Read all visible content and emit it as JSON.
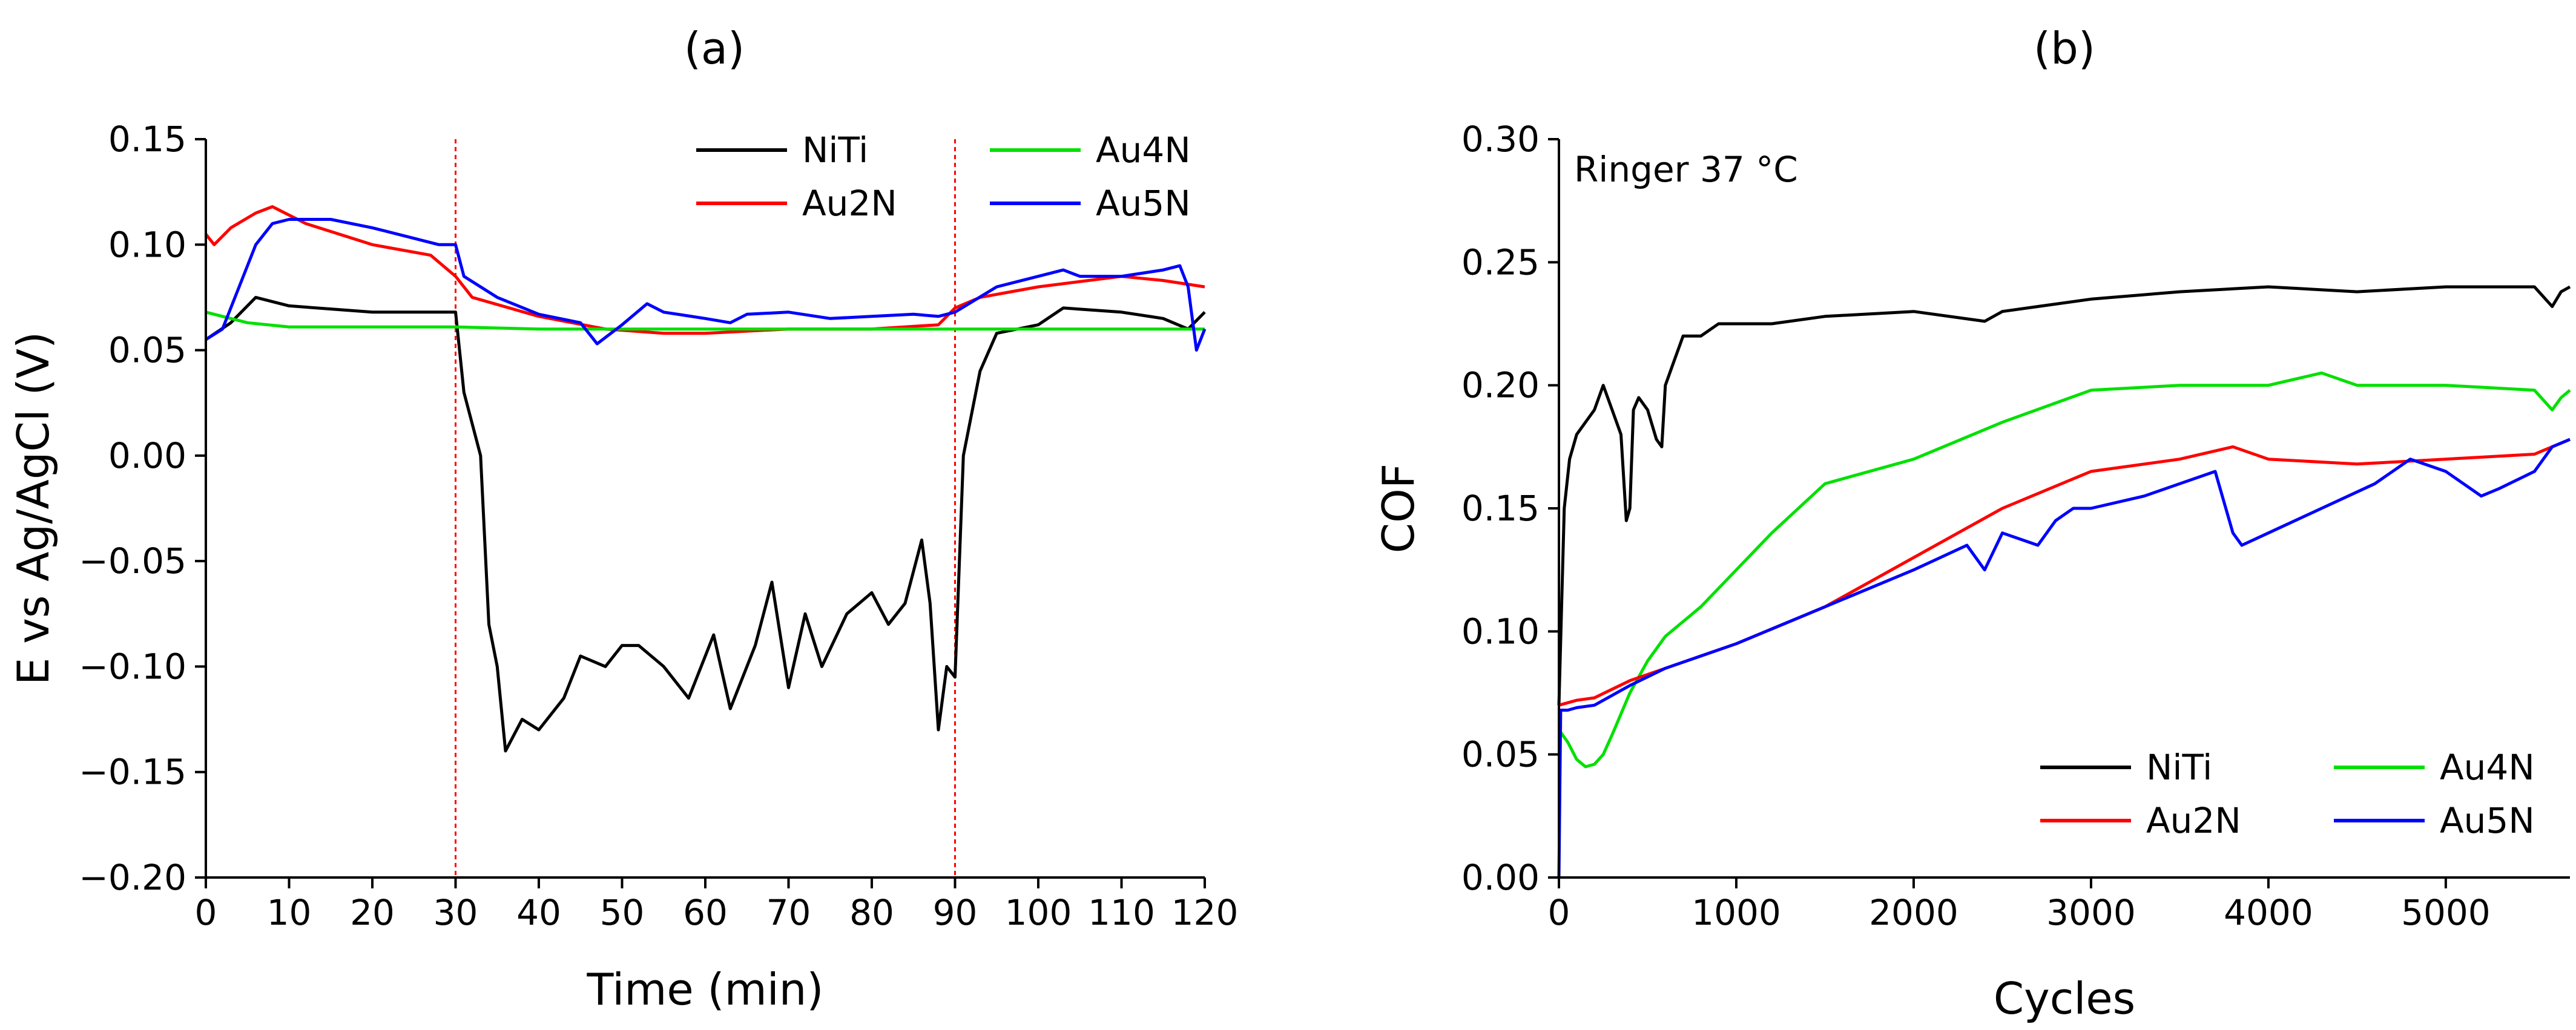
{
  "figure_labels": {
    "left": "(a)",
    "right": "(b)"
  },
  "colors": {
    "NiTi": "#000000",
    "Au2N": "#ff0000",
    "Au4N": "#00e000",
    "Au5N": "#0000ff",
    "vline": "#ff0000",
    "axis": "#000000"
  },
  "chart_data": [
    {
      "type": "line",
      "title": "(a)",
      "xlabel": "Time (min)",
      "ylabel": "E vs Ag/AgCl (V)",
      "xlim": [
        0,
        120
      ],
      "ylim": [
        -0.2,
        0.15
      ],
      "xticks": [
        0,
        10,
        20,
        30,
        40,
        50,
        60,
        70,
        80,
        90,
        100,
        110,
        120
      ],
      "xtick_labels": [
        "0",
        "10",
        "20",
        "30",
        "40",
        "50",
        "60",
        "70",
        "80",
        "90",
        "100",
        "110",
        "120"
      ],
      "yticks": [
        -0.2,
        -0.15,
        -0.1,
        -0.05,
        0.0,
        0.05,
        0.1,
        0.15
      ],
      "ytick_labels": [
        "-0.20",
        "-0.15",
        "-0.10",
        "-0.05",
        "0.00",
        "0.05",
        "0.10",
        "0.15"
      ],
      "vertical_lines": [
        30,
        90
      ],
      "legend": {
        "position": "top-right",
        "columns": 2,
        "entries": [
          "NiTi",
          "Au2N",
          "Au4N",
          "Au5N"
        ]
      },
      "series": [
        {
          "name": "NiTi",
          "x": [
            0,
            3,
            6,
            10,
            20,
            29,
            30,
            31,
            33,
            34,
            35,
            36,
            38,
            40,
            43,
            45,
            48,
            50,
            52,
            55,
            58,
            61,
            63,
            66,
            68,
            70,
            72,
            74,
            77,
            80,
            82,
            84,
            86,
            87,
            88,
            89,
            90,
            91,
            93,
            95,
            100,
            103,
            110,
            115,
            118,
            120
          ],
          "y": [
            0.055,
            0.063,
            0.075,
            0.071,
            0.068,
            0.068,
            0.068,
            0.03,
            0.0,
            -0.08,
            -0.1,
            -0.14,
            -0.125,
            -0.13,
            -0.115,
            -0.095,
            -0.1,
            -0.09,
            -0.09,
            -0.1,
            -0.115,
            -0.085,
            -0.12,
            -0.09,
            -0.06,
            -0.11,
            -0.075,
            -0.1,
            -0.075,
            -0.065,
            -0.08,
            -0.07,
            -0.04,
            -0.07,
            -0.13,
            -0.1,
            -0.105,
            0.0,
            0.04,
            0.058,
            0.062,
            0.07,
            0.068,
            0.065,
            0.06,
            0.068
          ]
        },
        {
          "name": "Au2N",
          "x": [
            0,
            1,
            3,
            6,
            8,
            12,
            20,
            27,
            30,
            32,
            40,
            48,
            55,
            60,
            70,
            80,
            88,
            90,
            93,
            100,
            110,
            115,
            120
          ],
          "y": [
            0.105,
            0.1,
            0.108,
            0.115,
            0.118,
            0.11,
            0.1,
            0.095,
            0.085,
            0.075,
            0.066,
            0.06,
            0.058,
            0.058,
            0.06,
            0.06,
            0.062,
            0.07,
            0.075,
            0.08,
            0.085,
            0.083,
            0.08
          ]
        },
        {
          "name": "Au4N",
          "x": [
            0,
            5,
            10,
            20,
            30,
            40,
            50,
            60,
            70,
            80,
            90,
            100,
            110,
            120
          ],
          "y": [
            0.068,
            0.063,
            0.061,
            0.061,
            0.061,
            0.06,
            0.06,
            0.06,
            0.06,
            0.06,
            0.06,
            0.06,
            0.06,
            0.06
          ]
        },
        {
          "name": "Au5N",
          "x": [
            0,
            2,
            4,
            6,
            8,
            10,
            12,
            15,
            20,
            25,
            28,
            30,
            31,
            35,
            40,
            45,
            47,
            50,
            53,
            55,
            60,
            63,
            65,
            70,
            75,
            80,
            85,
            88,
            90,
            95,
            100,
            103,
            105,
            110,
            115,
            117,
            118,
            119,
            120
          ],
          "y": [
            0.055,
            0.06,
            0.08,
            0.1,
            0.11,
            0.112,
            0.112,
            0.112,
            0.108,
            0.103,
            0.1,
            0.1,
            0.085,
            0.075,
            0.067,
            0.063,
            0.053,
            0.062,
            0.072,
            0.068,
            0.065,
            0.063,
            0.067,
            0.068,
            0.065,
            0.066,
            0.067,
            0.066,
            0.068,
            0.08,
            0.085,
            0.088,
            0.085,
            0.085,
            0.088,
            0.09,
            0.08,
            0.05,
            0.06
          ]
        }
      ]
    },
    {
      "type": "line",
      "title": "(b)",
      "xlabel": "Cycles",
      "ylabel": "COF",
      "annotation": "Ringer 37 °C",
      "xlim": [
        0,
        5700
      ],
      "ylim": [
        0.0,
        0.3
      ],
      "xticks": [
        0,
        1000,
        2000,
        3000,
        4000,
        5000
      ],
      "xtick_labels": [
        "0",
        "1000",
        "2000",
        "3000",
        "4000",
        "5000"
      ],
      "yticks": [
        0.0,
        0.05,
        0.1,
        0.15,
        0.2,
        0.25,
        0.3
      ],
      "ytick_labels": [
        "0.00",
        "0.05",
        "0.10",
        "0.15",
        "0.20",
        "0.25",
        "0.30"
      ],
      "legend": {
        "position": "bottom-right",
        "columns": 2,
        "entries": [
          "NiTi",
          "Au2N",
          "Au4N",
          "Au5N"
        ]
      },
      "series": [
        {
          "name": "NiTi",
          "x": [
            0,
            30,
            60,
            100,
            150,
            200,
            250,
            300,
            350,
            380,
            400,
            420,
            450,
            500,
            550,
            580,
            600,
            650,
            700,
            800,
            900,
            1000,
            1200,
            1500,
            2000,
            2400,
            2500,
            2700,
            3000,
            3500,
            4000,
            4500,
            5000,
            5500,
            5600,
            5650,
            5700
          ],
          "y": [
            0.07,
            0.15,
            0.17,
            0.18,
            0.185,
            0.19,
            0.2,
            0.19,
            0.18,
            0.145,
            0.15,
            0.19,
            0.195,
            0.19,
            0.178,
            0.175,
            0.2,
            0.21,
            0.22,
            0.22,
            0.225,
            0.225,
            0.225,
            0.228,
            0.23,
            0.226,
            0.23,
            0.232,
            0.235,
            0.238,
            0.24,
            0.238,
            0.24,
            0.24,
            0.232,
            0.238,
            0.24
          ]
        },
        {
          "name": "Au4N",
          "x": [
            0,
            50,
            100,
            150,
            200,
            250,
            300,
            400,
            500,
            600,
            800,
            1000,
            1200,
            1500,
            2000,
            2500,
            3000,
            3500,
            4000,
            4300,
            4500,
            5000,
            5500,
            5600,
            5650,
            5700
          ],
          "y": [
            0.06,
            0.055,
            0.048,
            0.045,
            0.046,
            0.05,
            0.058,
            0.075,
            0.088,
            0.098,
            0.11,
            0.125,
            0.14,
            0.16,
            0.17,
            0.185,
            0.198,
            0.2,
            0.2,
            0.205,
            0.2,
            0.2,
            0.198,
            0.19,
            0.195,
            0.198
          ]
        },
        {
          "name": "Au2N",
          "x": [
            0,
            100,
            200,
            400,
            600,
            800,
            1000,
            1500,
            2000,
            2500,
            3000,
            3500,
            3800,
            4000,
            4500,
            5000,
            5500,
            5700
          ],
          "y": [
            0.07,
            0.072,
            0.073,
            0.08,
            0.085,
            0.09,
            0.095,
            0.11,
            0.13,
            0.15,
            0.165,
            0.17,
            0.175,
            0.17,
            0.168,
            0.17,
            0.172,
            0.178
          ]
        },
        {
          "name": "Au5N",
          "x": [
            0,
            10,
            50,
            100,
            200,
            400,
            600,
            800,
            1000,
            1500,
            2000,
            2300,
            2400,
            2500,
            2700,
            2800,
            2900,
            3000,
            3300,
            3500,
            3700,
            3800,
            3850,
            4000,
            4300,
            4600,
            4800,
            5000,
            5200,
            5300,
            5500,
            5600,
            5700
          ],
          "y": [
            0.0,
            0.068,
            0.068,
            0.069,
            0.07,
            0.078,
            0.085,
            0.09,
            0.095,
            0.11,
            0.125,
            0.135,
            0.125,
            0.14,
            0.135,
            0.145,
            0.15,
            0.15,
            0.155,
            0.16,
            0.165,
            0.14,
            0.135,
            0.14,
            0.15,
            0.16,
            0.17,
            0.165,
            0.155,
            0.158,
            0.165,
            0.175,
            0.178
          ]
        }
      ]
    }
  ]
}
